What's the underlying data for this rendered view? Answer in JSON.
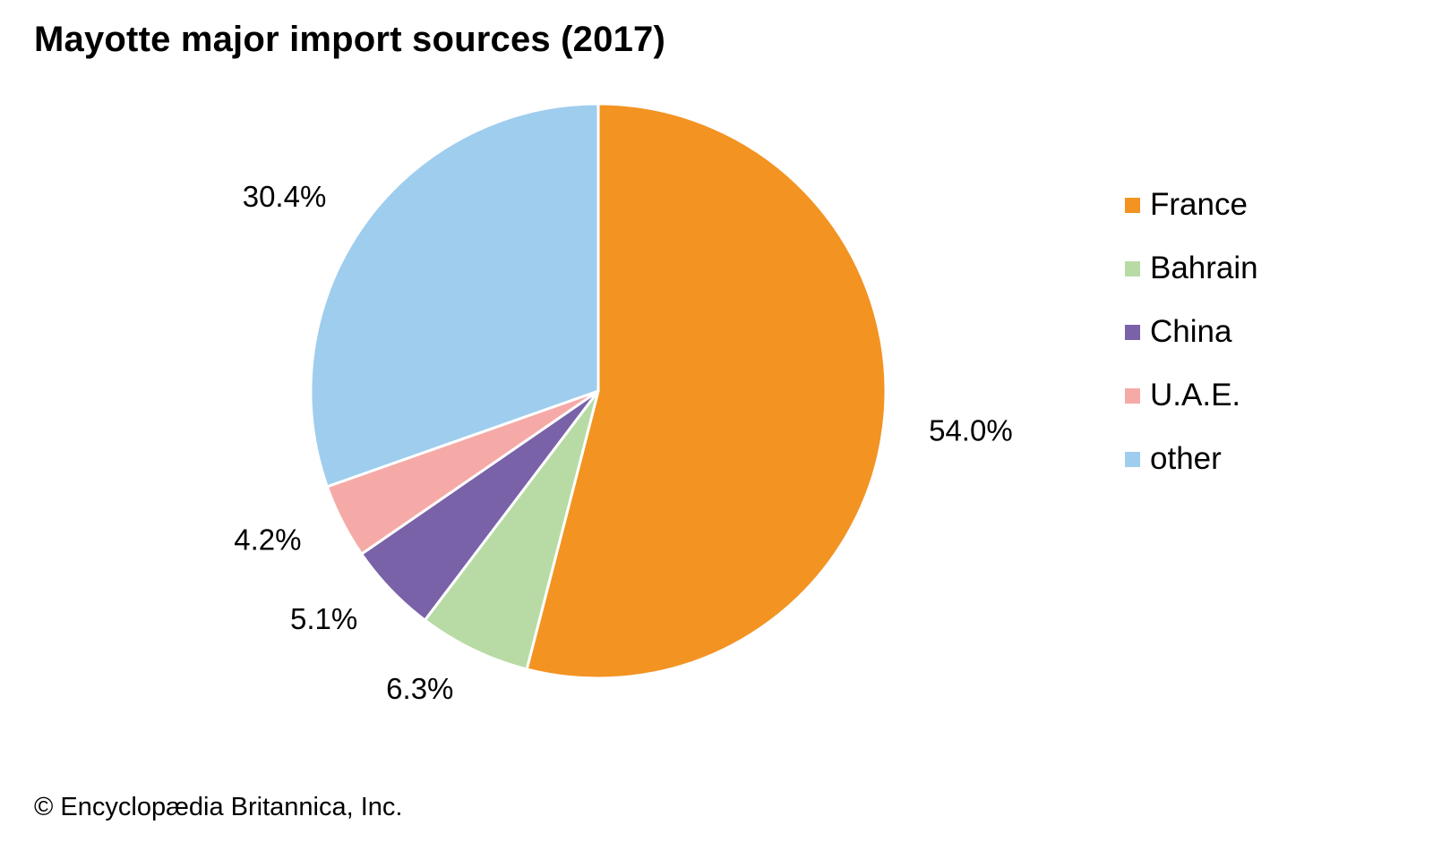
{
  "chart_data": {
    "type": "pie",
    "title": "Mayotte major import sources (2017)",
    "slices": [
      {
        "name": "France",
        "value": 54.0,
        "label": "54.0%",
        "color": "#f39322"
      },
      {
        "name": "Bahrain",
        "value": 6.3,
        "label": "6.3%",
        "color": "#b8dba5"
      },
      {
        "name": "China",
        "value": 5.1,
        "label": "5.1%",
        "color": "#7962a8"
      },
      {
        "name": "U.A.E.",
        "value": 4.2,
        "label": "4.2%",
        "color": "#f5aaa7"
      },
      {
        "name": "other",
        "value": 30.4,
        "label": "30.4%",
        "color": "#9ecdee"
      }
    ],
    "legend": {
      "placement": "right",
      "entries": [
        "France",
        "Bahrain",
        "China",
        "U.A.E.",
        "other"
      ]
    },
    "start_angle": "12 o'clock",
    "direction": "clockwise"
  },
  "credit": "© Encyclopædia Britannica, Inc."
}
